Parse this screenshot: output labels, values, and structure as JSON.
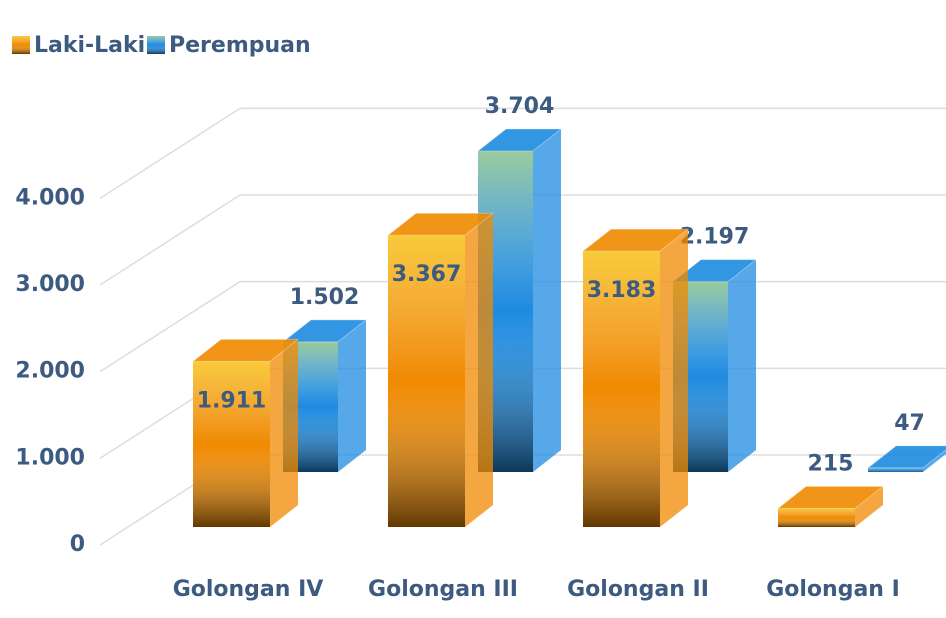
{
  "chart_data": {
    "type": "bar3d",
    "categories": [
      "Golongan IV",
      "Golongan III",
      "Golongan II",
      "Golongan I"
    ],
    "series": [
      {
        "name": "Laki-Laki",
        "color": "#f08a00",
        "values": [
          1911,
          3367,
          3183,
          215
        ],
        "value_labels": [
          "1.911",
          "3.367",
          "3.183",
          "215"
        ]
      },
      {
        "name": "Perempuan",
        "color": "#1e8be0",
        "values": [
          1502,
          3704,
          2197,
          47
        ],
        "value_labels": [
          "1.502",
          "3.704",
          "2.197",
          "47"
        ]
      }
    ],
    "ylim": [
      0,
      4500
    ],
    "yticks": [
      0,
      {
        "value": 1000,
        "label": "1.000"
      },
      {
        "value": 2000,
        "label": "2.000"
      },
      {
        "value": 3000,
        "label": "3.000"
      },
      {
        "value": 4000,
        "label": "4.000"
      }
    ],
    "grid": true,
    "legend": "top-left"
  }
}
